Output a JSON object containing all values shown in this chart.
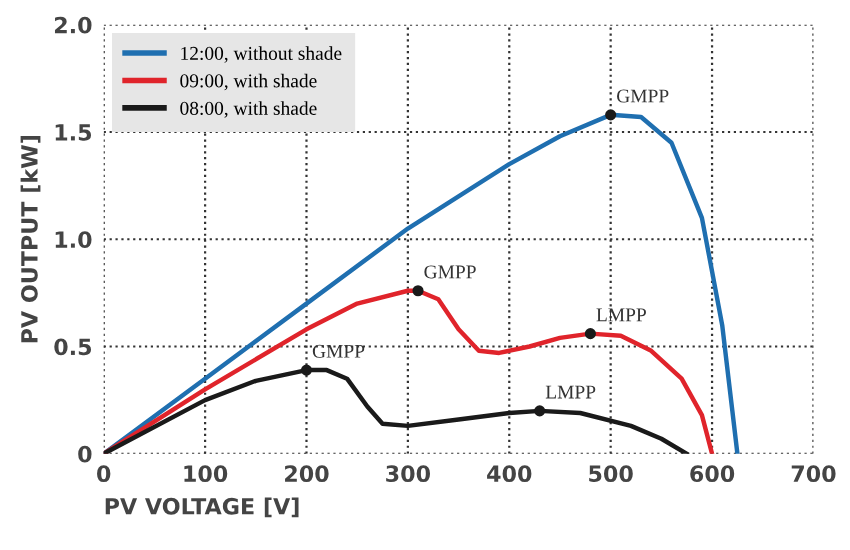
{
  "chart_data": {
    "type": "line",
    "xlabel": "PV VOLTAGE [V]",
    "ylabel": "PV OUTPUT [kW]",
    "series": [
      {
        "name": "12:00, without shade",
        "color": "#1f6fb0",
        "x": [
          0,
          100,
          200,
          300,
          400,
          450,
          500,
          530,
          560,
          590,
          610,
          620,
          625
        ],
        "values": [
          0,
          0.35,
          0.7,
          1.05,
          1.35,
          1.48,
          1.58,
          1.57,
          1.45,
          1.1,
          0.6,
          0.2,
          0
        ]
      },
      {
        "name": "09:00, with shade",
        "color": "#e0242b",
        "x": [
          0,
          100,
          200,
          250,
          300,
          310,
          330,
          350,
          370,
          390,
          420,
          450,
          480,
          510,
          540,
          570,
          590,
          600
        ],
        "values": [
          0,
          0.3,
          0.58,
          0.7,
          0.76,
          0.76,
          0.72,
          0.58,
          0.48,
          0.47,
          0.5,
          0.54,
          0.56,
          0.55,
          0.48,
          0.35,
          0.18,
          0
        ]
      },
      {
        "name": "08:00, with shade",
        "color": "#1a1a1a",
        "x": [
          0,
          100,
          150,
          200,
          220,
          240,
          260,
          275,
          300,
          350,
          400,
          430,
          470,
          520,
          550,
          575
        ],
        "values": [
          0,
          0.25,
          0.34,
          0.39,
          0.39,
          0.35,
          0.22,
          0.14,
          0.13,
          0.16,
          0.19,
          0.2,
          0.19,
          0.13,
          0.07,
          0
        ]
      }
    ],
    "annotations": [
      {
        "text": "GMPP",
        "x": 500,
        "y": 1.58
      },
      {
        "text": "GMPP",
        "x": 310,
        "y": 0.76
      },
      {
        "text": "LMPP",
        "x": 480,
        "y": 0.56
      },
      {
        "text": "GMPP",
        "x": 200,
        "y": 0.39
      },
      {
        "text": "LMPP",
        "x": 430,
        "y": 0.2
      }
    ],
    "xlim": [
      0,
      700
    ],
    "xticks": [
      0,
      100,
      200,
      300,
      400,
      500,
      600,
      700
    ],
    "ylim": [
      0,
      2.0
    ],
    "yticks": [
      0,
      {
        "value": 0.5,
        "label": "0.5"
      },
      {
        "value": 1.0,
        "label": "1.0"
      },
      {
        "value": 1.5,
        "label": "1.5"
      },
      {
        "value": 2.0,
        "label": "2.0"
      }
    ],
    "grid": true,
    "legend": "top left",
    "line_style": "solid",
    "marker": "none"
  }
}
